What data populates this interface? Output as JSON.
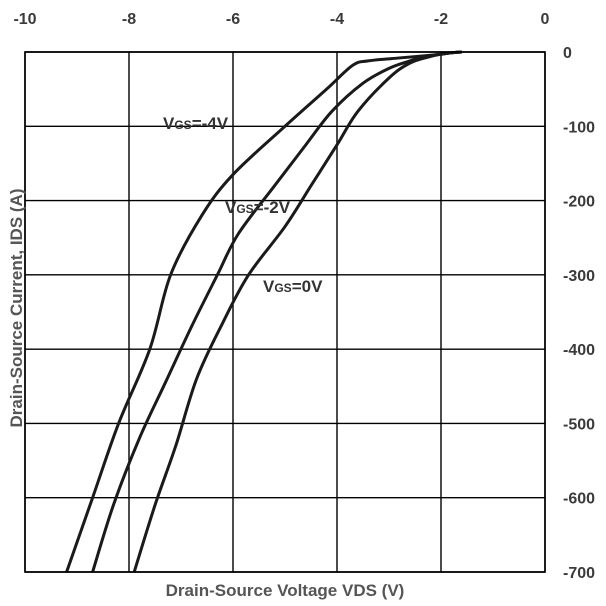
{
  "chart_data": {
    "type": "line",
    "xlabel": "Drain-Source Voltage VDS (V)",
    "ylabel": "Drain-Source Current, IDS (A)",
    "xlim": [
      -10,
      0
    ],
    "ylim": [
      -700,
      0
    ],
    "x_ticks": [
      "-10",
      "-8",
      "-6",
      "-4",
      "-2",
      "0"
    ],
    "y_ticks": [
      "0",
      "-100",
      "-200",
      "-300",
      "-400",
      "-500",
      "-600",
      "-700"
    ],
    "x_axis_position": "top",
    "y_axis_position": "right",
    "grid": true,
    "line_color": "#1a1a1a",
    "series": [
      {
        "name": "VGS=-4V",
        "label_main": "V",
        "label_sub": "GS",
        "label_tail": "=-4V",
        "x": [
          -1.6,
          -1.8,
          -2.0,
          -2.3,
          -2.8,
          -3.4,
          -3.7,
          -4.2,
          -5.0,
          -6.0,
          -6.6,
          -7.2,
          -7.6,
          -8.2,
          -8.7,
          -9.2
        ],
        "y": [
          0,
          -1,
          -3,
          -5,
          -8,
          -12,
          -18,
          -50,
          -100,
          -165,
          -220,
          -300,
          -400,
          -500,
          -600,
          -700
        ]
      },
      {
        "name": "VGS=-2V",
        "label_main": "V",
        "label_sub": "GS",
        "label_tail": "=-2V",
        "x": [
          -1.6,
          -1.8,
          -2.0,
          -2.3,
          -2.6,
          -3.0,
          -3.5,
          -4.1,
          -4.6,
          -5.2,
          -5.9,
          -6.3,
          -6.8,
          -7.3,
          -7.8,
          -8.3,
          -8.7
        ],
        "y": [
          0,
          -1,
          -3,
          -6,
          -12,
          -22,
          -42,
          -80,
          -125,
          -180,
          -245,
          -300,
          -370,
          -445,
          -520,
          -610,
          -700
        ]
      },
      {
        "name": "VGS=0V",
        "label_main": "V",
        "label_sub": "GS",
        "label_tail": "=0V",
        "x": [
          -1.6,
          -1.8,
          -2.0,
          -2.2,
          -2.6,
          -3.0,
          -3.6,
          -4.0,
          -4.5,
          -5.0,
          -5.7,
          -6.2,
          -6.7,
          -7.1,
          -7.5,
          -7.9
        ],
        "y": [
          0,
          -1,
          -3,
          -6,
          -15,
          -35,
          -80,
          -125,
          -180,
          -235,
          -300,
          -365,
          -440,
          -530,
          -610,
          -700
        ]
      }
    ]
  }
}
